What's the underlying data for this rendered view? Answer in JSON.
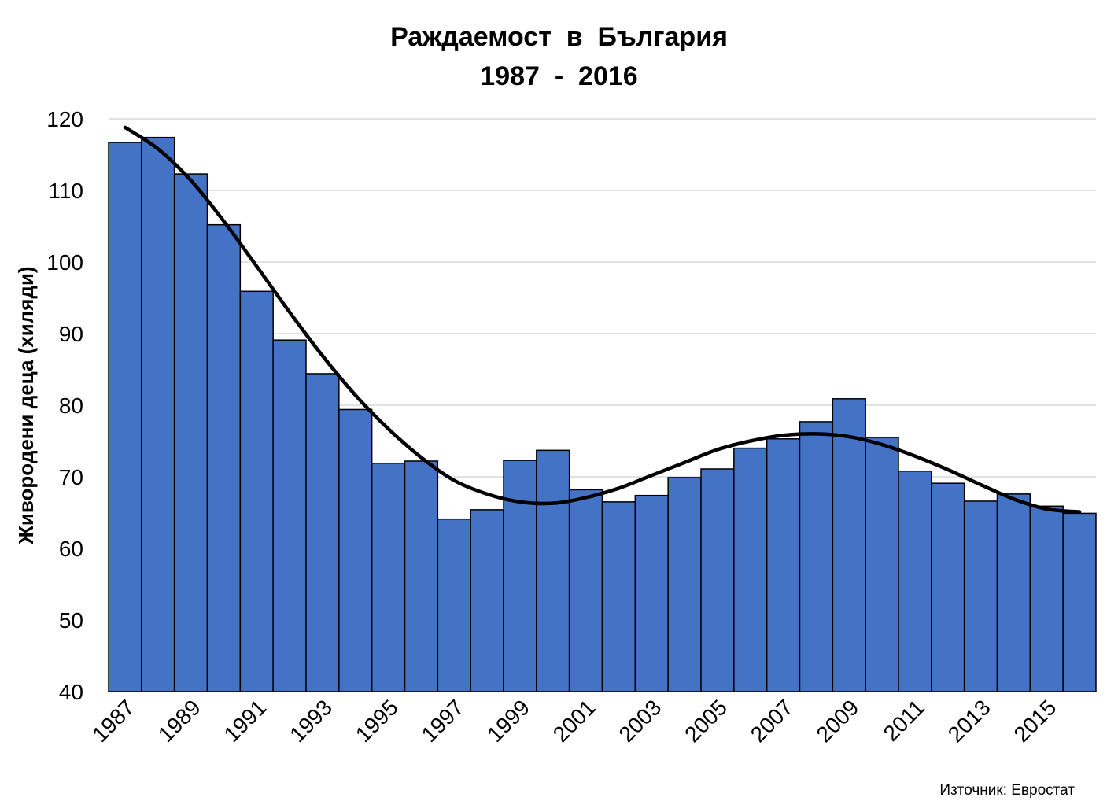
{
  "chart_data": {
    "type": "bar",
    "title": "Раждаемост  в  България",
    "subtitle": "1987  -  2016",
    "xlabel": "",
    "ylabel": "Живородени деца (хиляди)",
    "ylim": [
      40,
      120
    ],
    "yticks": [
      40,
      50,
      60,
      70,
      80,
      90,
      100,
      110,
      120
    ],
    "grid": "horizontal",
    "legend": "none",
    "categories": [
      1987,
      1988,
      1989,
      1990,
      1991,
      1992,
      1993,
      1994,
      1995,
      1996,
      1997,
      1998,
      1999,
      2000,
      2001,
      2002,
      2003,
      2004,
      2005,
      2006,
      2007,
      2008,
      2009,
      2010,
      2011,
      2012,
      2013,
      2014,
      2015,
      2016
    ],
    "xtick_labels": [
      "1987",
      "1989",
      "1991",
      "1993",
      "1995",
      "1997",
      "1999",
      "2001",
      "2003",
      "2005",
      "2007",
      "2009",
      "2011",
      "2013",
      "2015"
    ],
    "series": [
      {
        "values": [
          116.7,
          117.4,
          112.3,
          105.2,
          95.9,
          89.1,
          84.4,
          79.4,
          71.9,
          72.2,
          64.1,
          65.4,
          72.3,
          73.7,
          68.2,
          66.5,
          67.4,
          69.9,
          71.1,
          74.0,
          75.3,
          77.7,
          80.9,
          75.5,
          70.8,
          69.1,
          66.6,
          67.6,
          65.9,
          64.9
        ]
      }
    ],
    "trendline": {
      "type": "polynomial",
      "values": [
        118.8,
        115.8,
        111.4,
        105.7,
        99.4,
        93.0,
        86.9,
        81.4,
        76.7,
        72.7,
        69.5,
        67.6,
        66.5,
        66.3,
        67.1,
        68.4,
        70.2,
        72.0,
        73.8,
        75.0,
        75.8,
        76.0,
        75.6,
        74.5,
        72.9,
        71.0,
        68.9,
        66.9,
        65.5,
        65.1
      ]
    },
    "colors": {
      "bar": "#4472C4",
      "bar_edge": "#000000",
      "trend": "#000000",
      "grid": "#D9D9D9"
    }
  },
  "source_note": "Източник: Евростат"
}
